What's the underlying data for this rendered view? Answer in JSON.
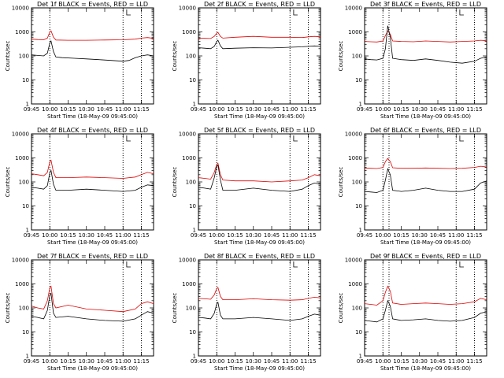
{
  "chart_data": {
    "type": "line",
    "y_scale": "log",
    "ylim": [
      1,
      10000
    ],
    "xlim": [
      "09:45",
      "11:25"
    ],
    "x_ticks": [
      "09:45",
      "10:00",
      "10:15",
      "10:30",
      "10:45",
      "11:00",
      "11:15"
    ],
    "y_ticks": [
      "1",
      "10",
      "100",
      "1000",
      "10000"
    ],
    "ylabel": "Counts/sec",
    "xlabel": "Start Time (18-May-09 09:45:00)",
    "series_colors": {
      "events": "#000000",
      "lld": "#e00000"
    },
    "panels": [
      {
        "title": "Det 1f BLACK = Events, RED = LLD",
        "vlines": [
          "10:00",
          "11:00",
          "11:15"
        ],
        "marker": "11:03",
        "events": {
          "x": [
            "09:45",
            "09:50",
            "09:55",
            "09:58",
            "10:00",
            "10:01",
            "10:03",
            "10:05",
            "10:10",
            "10:20",
            "10:30",
            "10:40",
            "10:50",
            "11:00",
            "11:05",
            "11:10",
            "11:15",
            "11:20",
            "11:25"
          ],
          "y": [
            110,
            105,
            100,
            130,
            350,
            420,
            150,
            90,
            85,
            80,
            75,
            70,
            65,
            60,
            65,
            85,
            100,
            110,
            100
          ]
        },
        "lld": {
          "x": [
            "09:45",
            "09:50",
            "09:55",
            "09:58",
            "10:00",
            "10:01",
            "10:03",
            "10:05",
            "10:15",
            "10:30",
            "10:45",
            "11:00",
            "11:10",
            "11:15",
            "11:20",
            "11:25"
          ],
          "y": [
            500,
            480,
            470,
            550,
            1000,
            1100,
            600,
            460,
            450,
            450,
            460,
            470,
            500,
            550,
            580,
            540
          ]
        }
      },
      {
        "title": "Det 2f BLACK = Events, RED = LLD",
        "vlines": [
          "10:00",
          "11:00",
          "11:15"
        ],
        "marker": "11:03",
        "events": {
          "x": [
            "09:45",
            "09:50",
            "09:55",
            "09:58",
            "10:00",
            "10:01",
            "10:03",
            "10:05",
            "10:15",
            "10:30",
            "10:45",
            "11:00",
            "11:10",
            "11:15",
            "11:20",
            "11:25"
          ],
          "y": [
            220,
            210,
            200,
            250,
            400,
            450,
            260,
            200,
            210,
            220,
            215,
            230,
            240,
            250,
            260,
            250
          ]
        },
        "lld": {
          "x": [
            "09:45",
            "09:50",
            "09:55",
            "09:58",
            "10:00",
            "10:01",
            "10:03",
            "10:05",
            "10:15",
            "10:30",
            "10:45",
            "11:00",
            "11:10",
            "11:15",
            "11:20",
            "11:25"
          ],
          "y": [
            550,
            540,
            530,
            650,
            900,
            950,
            650,
            550,
            600,
            650,
            600,
            600,
            580,
            620,
            650,
            620
          ]
        }
      },
      {
        "title": "Det 3f BLACK = Events, RED = LLD",
        "vlines": [
          "10:00",
          "10:05",
          "11:00",
          "11:15"
        ],
        "marker": "11:03",
        "events": {
          "x": [
            "09:45",
            "09:50",
            "09:55",
            "10:00",
            "10:02",
            "10:04",
            "10:06",
            "10:08",
            "10:15",
            "10:25",
            "10:35",
            "10:45",
            "10:55",
            "11:05",
            "11:15",
            "11:20",
            "11:25"
          ],
          "y": [
            75,
            70,
            68,
            80,
            200,
            1800,
            600,
            80,
            70,
            65,
            75,
            65,
            55,
            50,
            60,
            80,
            90
          ]
        },
        "lld": {
          "x": [
            "09:45",
            "09:50",
            "09:55",
            "10:00",
            "10:02",
            "10:04",
            "10:06",
            "10:08",
            "10:15",
            "10:25",
            "10:35",
            "10:45",
            "10:55",
            "11:05",
            "11:15",
            "11:20",
            "11:25"
          ],
          "y": [
            400,
            390,
            380,
            420,
            700,
            1100,
            800,
            420,
            400,
            390,
            420,
            400,
            380,
            400,
            420,
            450,
            430
          ]
        }
      },
      {
        "title": "Det 4f BLACK = Events, RED = LLD",
        "vlines": [
          "10:00",
          "11:00",
          "11:15"
        ],
        "marker": "11:03",
        "events": {
          "x": [
            "09:45",
            "09:50",
            "09:55",
            "09:58",
            "10:00",
            "10:01",
            "10:03",
            "10:05",
            "10:15",
            "10:30",
            "10:45",
            "11:00",
            "11:10",
            "11:15",
            "11:20",
            "11:25"
          ],
          "y": [
            60,
            55,
            50,
            70,
            250,
            300,
            80,
            45,
            45,
            50,
            45,
            40,
            45,
            60,
            75,
            70
          ]
        },
        "lld": {
          "x": [
            "09:45",
            "09:50",
            "09:55",
            "09:58",
            "10:00",
            "10:01",
            "10:03",
            "10:05",
            "10:15",
            "10:30",
            "10:45",
            "11:00",
            "11:10",
            "11:15",
            "11:20",
            "11:25"
          ],
          "y": [
            220,
            200,
            180,
            250,
            700,
            800,
            250,
            150,
            150,
            160,
            150,
            140,
            160,
            200,
            250,
            220
          ]
        }
      },
      {
        "title": "Det 5f BLACK = Events, RED = LLD",
        "vlines": [
          "10:00",
          "11:00",
          "11:15"
        ],
        "marker": "11:03",
        "events": {
          "x": [
            "09:45",
            "09:50",
            "09:55",
            "09:58",
            "10:00",
            "10:01",
            "10:03",
            "10:05",
            "10:15",
            "10:30",
            "10:45",
            "11:00",
            "11:10",
            "11:15",
            "11:20",
            "11:25"
          ],
          "y": [
            60,
            55,
            50,
            150,
            450,
            500,
            120,
            45,
            45,
            55,
            45,
            40,
            50,
            70,
            90,
            80
          ]
        },
        "lld": {
          "x": [
            "09:45",
            "09:50",
            "09:55",
            "09:58",
            "10:00",
            "10:01",
            "10:03",
            "10:05",
            "10:15",
            "10:30",
            "10:45",
            "11:00",
            "11:10",
            "11:15",
            "11:20",
            "11:25"
          ],
          "y": [
            150,
            140,
            130,
            250,
            550,
            600,
            200,
            120,
            110,
            110,
            100,
            110,
            120,
            150,
            200,
            180
          ]
        }
      },
      {
        "title": "Det 6f BLACK = Events, RED = LLD",
        "vlines": [
          "10:00",
          "10:05",
          "11:00",
          "11:15"
        ],
        "marker": "11:03",
        "events": {
          "x": [
            "09:45",
            "09:50",
            "09:55",
            "10:00",
            "10:02",
            "10:04",
            "10:06",
            "10:08",
            "10:15",
            "10:25",
            "10:35",
            "10:45",
            "10:55",
            "11:05",
            "11:15",
            "11:20",
            "11:25"
          ],
          "y": [
            40,
            38,
            36,
            45,
            120,
            350,
            200,
            45,
            40,
            45,
            55,
            45,
            40,
            40,
            50,
            90,
            110
          ]
        },
        "lld": {
          "x": [
            "09:45",
            "09:50",
            "09:55",
            "10:00",
            "10:02",
            "10:04",
            "10:06",
            "10:08",
            "10:15",
            "10:25",
            "10:35",
            "10:45",
            "10:55",
            "11:05",
            "11:15",
            "11:20",
            "11:25"
          ],
          "y": [
            380,
            370,
            360,
            400,
            700,
            950,
            700,
            390,
            370,
            370,
            380,
            370,
            360,
            370,
            400,
            450,
            420
          ]
        }
      },
      {
        "title": "Det 7f BLACK = Events, RED = LLD",
        "vlines": [
          "10:00",
          "11:00",
          "11:15"
        ],
        "marker": "11:03",
        "events": {
          "x": [
            "09:45",
            "09:50",
            "09:55",
            "09:58",
            "10:00",
            "10:01",
            "10:03",
            "10:05",
            "10:15",
            "10:30",
            "10:45",
            "11:00",
            "11:10",
            "11:15",
            "11:20",
            "11:25"
          ],
          "y": [
            45,
            40,
            35,
            80,
            350,
            400,
            60,
            40,
            45,
            35,
            30,
            28,
            35,
            50,
            70,
            60
          ]
        },
        "lld": {
          "x": [
            "09:45",
            "09:50",
            "09:55",
            "09:58",
            "10:00",
            "10:01",
            "10:03",
            "10:05",
            "10:15",
            "10:30",
            "10:45",
            "11:00",
            "11:10",
            "11:15",
            "11:20",
            "11:25"
          ],
          "y": [
            120,
            100,
            90,
            200,
            700,
            800,
            150,
            100,
            130,
            90,
            80,
            70,
            90,
            150,
            180,
            150
          ]
        }
      },
      {
        "title": "Det 8f BLACK = Events, RED = LLD",
        "vlines": [
          "10:00",
          "11:00",
          "11:15"
        ],
        "marker": "11:03",
        "events": {
          "x": [
            "09:45",
            "09:50",
            "09:55",
            "09:58",
            "10:00",
            "10:01",
            "10:03",
            "10:05",
            "10:15",
            "10:30",
            "10:45",
            "11:00",
            "11:10",
            "11:15",
            "11:20",
            "11:25"
          ],
          "y": [
            40,
            38,
            35,
            60,
            150,
            170,
            50,
            35,
            35,
            40,
            35,
            30,
            35,
            45,
            55,
            50
          ]
        },
        "lld": {
          "x": [
            "09:45",
            "09:50",
            "09:55",
            "09:58",
            "10:00",
            "10:01",
            "10:03",
            "10:05",
            "10:15",
            "10:30",
            "10:45",
            "11:00",
            "11:10",
            "11:15",
            "11:20",
            "11:25"
          ],
          "y": [
            250,
            240,
            230,
            350,
            650,
            700,
            300,
            220,
            220,
            240,
            220,
            210,
            220,
            250,
            280,
            260
          ]
        }
      },
      {
        "title": "Det 9f BLACK = Events, RED = LLD",
        "vlines": [
          "10:00",
          "10:05",
          "11:00",
          "11:15"
        ],
        "marker": "11:03",
        "events": {
          "x": [
            "09:45",
            "09:50",
            "09:55",
            "10:00",
            "10:02",
            "10:04",
            "10:06",
            "10:08",
            "10:15",
            "10:25",
            "10:35",
            "10:45",
            "10:55",
            "11:05",
            "11:15",
            "11:20",
            "11:25"
          ],
          "y": [
            30,
            28,
            26,
            35,
            80,
            200,
            120,
            35,
            30,
            32,
            35,
            30,
            28,
            30,
            40,
            60,
            70
          ]
        },
        "lld": {
          "x": [
            "09:45",
            "09:50",
            "09:55",
            "10:00",
            "10:02",
            "10:04",
            "10:06",
            "10:08",
            "10:15",
            "10:25",
            "10:35",
            "10:45",
            "10:55",
            "11:05",
            "11:15",
            "11:20",
            "11:25"
          ],
          "y": [
            150,
            140,
            130,
            200,
            450,
            800,
            500,
            160,
            140,
            150,
            160,
            150,
            140,
            150,
            180,
            250,
            220
          ]
        }
      }
    ]
  }
}
